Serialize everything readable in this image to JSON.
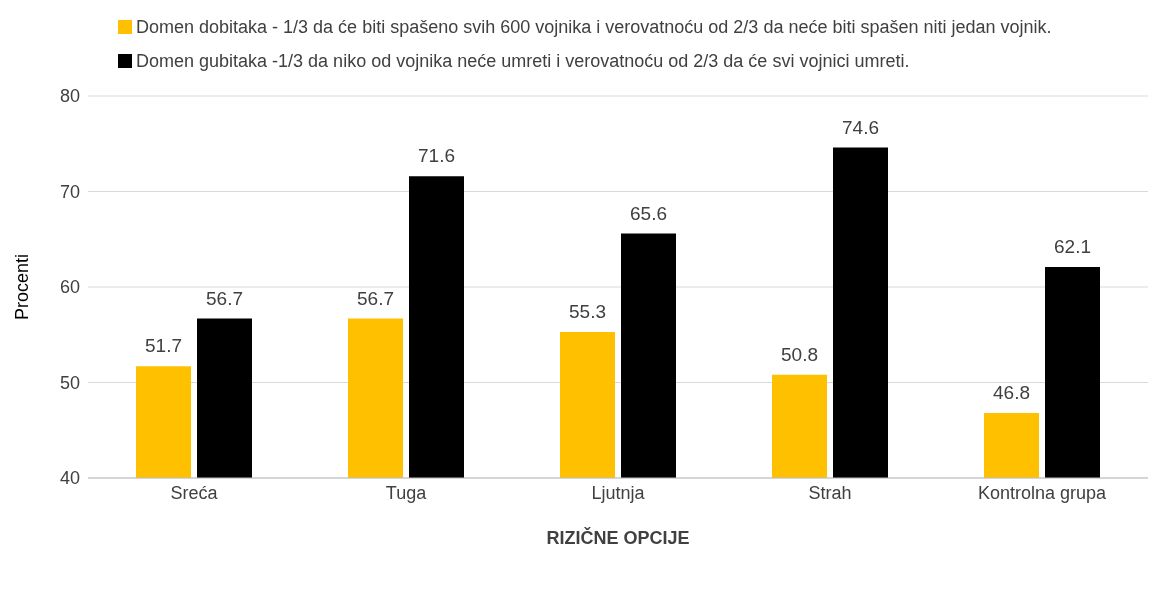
{
  "chart_data": {
    "type": "bar",
    "xlabel": "RIZIČNE OPCIJE",
    "ylabel": "Procenti",
    "categories": [
      "Sreća",
      "Tuga",
      "Ljutnja",
      "Strah",
      "Kontrolna grupa"
    ],
    "series": [
      {
        "name": "Domen dobitaka - 1/3 da će biti spašeno svih 600 vojnika i verovatnoću od 2/3 da neće biti spašen niti jedan vojnik.",
        "color": "#ffc000",
        "values": [
          51.7,
          56.7,
          55.3,
          50.8,
          46.8
        ]
      },
      {
        "name": "Domen gubitaka -1/3 da niko od vojnika neće umreti i verovatnoću od 2/3 da će svi vojnici umreti.",
        "color": "#000000",
        "values": [
          56.7,
          71.6,
          65.6,
          74.6,
          62.1
        ]
      }
    ],
    "ylim": [
      40,
      80
    ],
    "yticks": [
      40,
      50,
      60,
      70,
      80
    ],
    "grid": "y",
    "legend": "top",
    "data_labels": true
  }
}
